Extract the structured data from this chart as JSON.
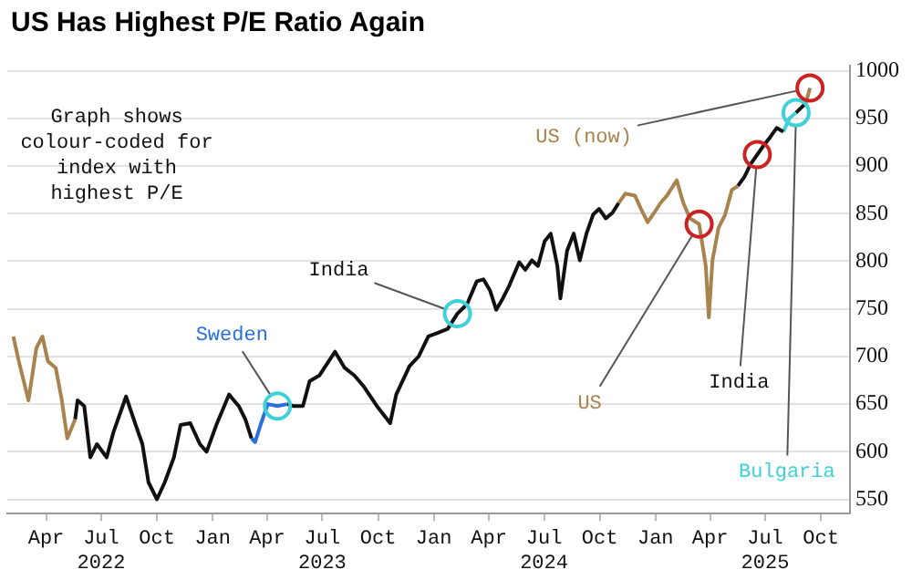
{
  "chart_data": {
    "type": "line",
    "title": "US Has Highest P/E Ratio Again",
    "xlim": [
      "2022-01-27",
      "2025-11-18"
    ],
    "xticks": [
      {
        "value": "2022-04-01",
        "label": "Apr"
      },
      {
        "value": "2022-07-01",
        "label": "Jul\n2022"
      },
      {
        "value": "2022-10-01",
        "label": "Oct"
      },
      {
        "value": "2023-01-01",
        "label": "Jan"
      },
      {
        "value": "2023-04-01",
        "label": "Apr"
      },
      {
        "value": "2023-07-01",
        "label": "Jul\n2023"
      },
      {
        "value": "2023-10-01",
        "label": "Oct"
      },
      {
        "value": "2024-01-01",
        "label": "Jan"
      },
      {
        "value": "2024-04-01",
        "label": "Apr"
      },
      {
        "value": "2024-07-01",
        "label": "Jul\n2024"
      },
      {
        "value": "2024-10-01",
        "label": "Oct"
      },
      {
        "value": "2025-01-01",
        "label": "Jan"
      },
      {
        "value": "2025-04-01",
        "label": "Apr"
      },
      {
        "value": "2025-07-01",
        "label": "Jul\n2025"
      },
      {
        "value": "2025-10-01",
        "label": "Oct"
      }
    ],
    "ylim": [
      535,
      1005
    ],
    "yticks": [
      550,
      600,
      650,
      700,
      750,
      800,
      850,
      900,
      950,
      1000
    ],
    "grid": "y",
    "series": [
      {
        "color": "#a8834e",
        "x": [
          "2022-02-06",
          "2022-02-15",
          "2022-03-03",
          "2022-03-16",
          "2022-03-26",
          "2022-04-04",
          "2022-04-17",
          "2022-04-27",
          "2022-05-06",
          "2022-05-19"
        ],
        "values": [
          721,
          695,
          654,
          709,
          721,
          695,
          688,
          654,
          614,
          634
        ]
      },
      {
        "color": "#111111",
        "x": [
          "2022-05-19",
          "2022-05-23",
          "2022-06-03",
          "2022-06-13",
          "2022-06-24",
          "2022-07-10",
          "2022-07-21",
          "2022-08-11",
          "2022-08-27",
          "2022-09-07",
          "2022-09-17",
          "2022-10-01",
          "2022-10-14",
          "2022-10-29",
          "2022-11-09",
          "2022-11-25",
          "2022-12-11",
          "2022-12-22",
          "2023-01-07",
          "2023-01-28",
          "2023-02-13",
          "2023-02-24",
          "2023-03-06"
        ],
        "values": [
          634,
          654,
          648,
          594,
          608,
          594,
          620,
          658,
          628,
          608,
          568,
          550,
          568,
          594,
          628,
          630,
          608,
          600,
          628,
          660,
          648,
          634,
          614
        ]
      },
      {
        "color": "#2a6fdb",
        "x": [
          "2023-03-06",
          "2023-03-12",
          "2023-03-22",
          "2023-04-02",
          "2023-04-18",
          "2023-05-04"
        ],
        "values": [
          614,
          610,
          630,
          650,
          648,
          650
        ]
      },
      {
        "color": "#111111",
        "x": [
          "2023-05-04",
          "2023-05-14",
          "2023-05-30",
          "2023-06-10",
          "2023-06-26",
          "2023-07-22",
          "2023-08-07",
          "2023-08-23",
          "2023-09-08",
          "2023-09-29",
          "2023-10-21",
          "2023-10-31",
          "2023-11-22",
          "2023-12-07",
          "2023-12-23",
          "2024-01-08",
          "2024-01-24",
          "2024-02-09",
          "2024-02-25",
          "2024-03-12",
          "2024-03-23",
          "2024-04-03",
          "2024-04-13",
          "2024-04-24",
          "2024-05-05",
          "2024-05-21",
          "2024-05-31",
          "2024-06-11",
          "2024-06-21",
          "2024-07-02",
          "2024-07-12",
          "2024-07-23",
          "2024-07-28",
          "2024-08-08",
          "2024-08-19",
          "2024-08-29",
          "2024-09-09",
          "2024-09-20",
          "2024-09-30",
          "2024-10-11",
          "2024-10-22",
          "2024-11-01"
        ],
        "values": [
          650,
          648,
          648,
          674,
          680,
          705,
          688,
          680,
          668,
          648,
          630,
          660,
          690,
          700,
          721,
          725,
          729,
          745,
          755,
          779,
          781,
          769,
          749,
          761,
          775,
          799,
          791,
          801,
          795,
          821,
          829,
          795,
          761,
          811,
          829,
          801,
          829,
          849,
          855,
          845,
          851,
          861
        ]
      },
      {
        "color": "#a8834e",
        "x": [
          "2024-11-01",
          "2024-11-12",
          "2024-11-28",
          "2024-12-08",
          "2024-12-19",
          "2024-12-30",
          "2025-01-09",
          "2025-01-20",
          "2025-02-05",
          "2025-02-16",
          "2025-02-27",
          "2025-03-14",
          "2025-03-25",
          "2025-03-30",
          "2025-04-05",
          "2025-04-15",
          "2025-04-26",
          "2025-05-07",
          "2025-05-17"
        ],
        "values": [
          861,
          871,
          869,
          855,
          841,
          851,
          861,
          869,
          885,
          861,
          845,
          839,
          795,
          741,
          801,
          835,
          849,
          875,
          879
        ]
      },
      {
        "color": "#111111",
        "x": [
          "2025-05-17",
          "2025-05-28",
          "2025-06-07",
          "2025-06-18",
          "2025-06-29",
          "2025-07-09",
          "2025-07-20",
          "2025-07-31"
        ],
        "values": [
          879,
          889,
          902,
          912,
          922,
          930,
          940,
          936
        ]
      },
      {
        "color": "#3fd0d8",
        "x": [
          "2025-07-31",
          "2025-08-10",
          "2025-08-21"
        ],
        "values": [
          936,
          950,
          956
        ]
      },
      {
        "color": "#111111",
        "x": [
          "2025-08-21",
          "2025-09-06"
        ],
        "values": [
          956,
          966
        ]
      },
      {
        "color": "#a8834e",
        "x": [
          "2025-09-06",
          "2025-09-13"
        ],
        "values": [
          966,
          982
        ]
      }
    ],
    "annotations": [
      "Graph shows colour-coded for index with highest P/E",
      {
        "text": "Sweden",
        "x": "2023-04-18",
        "y": 648
      },
      {
        "text": "India",
        "x": "2024-02-09",
        "y": 745
      },
      {
        "text": "US",
        "x": "2025-03-14",
        "y": 839
      },
      {
        "text": "India",
        "x": "2025-06-18",
        "y": 912
      },
      {
        "text": "Bulgaria",
        "x": "2025-08-21",
        "y": 956
      },
      {
        "text": "US (now)",
        "x": "2025-09-13",
        "y": 982
      }
    ]
  }
}
